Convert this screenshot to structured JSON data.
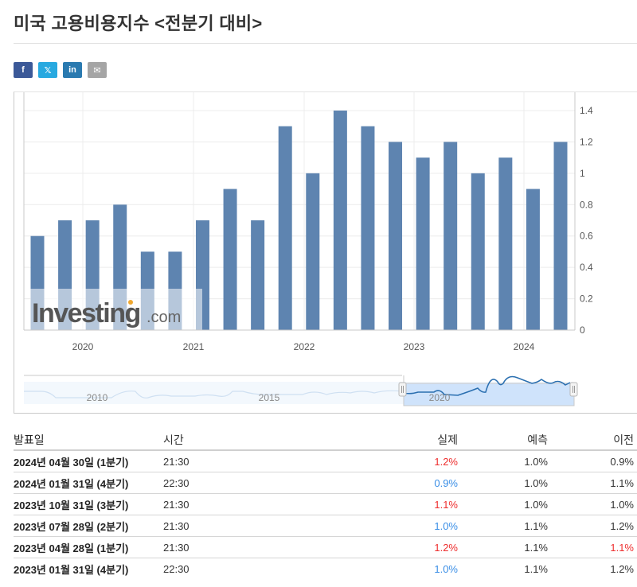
{
  "page": {
    "title": "미국 고용비용지수 <전분기 대비>"
  },
  "social": [
    {
      "name": "facebook",
      "glyph": "f",
      "color": "#3b5998"
    },
    {
      "name": "x-twitter",
      "glyph": "𝕏",
      "color": "#28a9e0"
    },
    {
      "name": "linkedin",
      "glyph": "in",
      "color": "#2a7ab0"
    },
    {
      "name": "email",
      "glyph": "✉",
      "color": "#a5a5a5"
    }
  ],
  "chart_data": {
    "type": "bar",
    "title": "미국 고용비용지수 <전분기 대비>",
    "xlabel": "",
    "ylabel": "",
    "ylim": [
      0,
      1.4
    ],
    "y_ticks": [
      "0",
      "0.2",
      "0.4",
      "0.6",
      "0.8",
      "1",
      "1.2",
      "1.4"
    ],
    "y_axis_position": "right",
    "x_tick_labels": [
      "2020",
      "2021",
      "2022",
      "2023",
      "2024"
    ],
    "grid": true,
    "legend": "none",
    "bar_color": "#5e84b0",
    "categories": [
      "2019Q3",
      "2019Q4",
      "2020Q1",
      "2020Q2",
      "2020Q3",
      "2020Q4",
      "2021Q1",
      "2021Q2",
      "2021Q3",
      "2021Q4",
      "2022Q1",
      "2022Q2",
      "2022Q3",
      "2022Q4",
      "2023Q1",
      "2023Q2",
      "2023Q3",
      "2023Q4",
      "2024Q1",
      "2024Q2"
    ],
    "values": [
      0.6,
      0.7,
      0.7,
      0.8,
      0.5,
      0.5,
      0.7,
      0.9,
      0.7,
      1.3,
      1.0,
      1.4,
      1.3,
      1.2,
      1.1,
      1.2,
      1.0,
      1.1,
      0.9,
      1.2
    ],
    "watermark": "Investing.com",
    "navigator": {
      "labels": [
        "2010",
        "2015",
        "2020"
      ],
      "selected_range": "2019–2024"
    }
  },
  "table": {
    "headers": {
      "date": "발표일",
      "time": "시간",
      "actual": "실제",
      "forecast": "예측",
      "previous": "이전"
    },
    "rows": [
      {
        "date": "2024년 04월 30일 (1분기)",
        "time": "21:30",
        "actual": "1.2%",
        "actual_dir": "up",
        "forecast": "1.0%",
        "previous": "0.9%",
        "previous_dir": ""
      },
      {
        "date": "2024년 01월 31일 (4분기)",
        "time": "22:30",
        "actual": "0.9%",
        "actual_dir": "down",
        "forecast": "1.0%",
        "previous": "1.1%",
        "previous_dir": ""
      },
      {
        "date": "2023년 10월 31일 (3분기)",
        "time": "21:30",
        "actual": "1.1%",
        "actual_dir": "up",
        "forecast": "1.0%",
        "previous": "1.0%",
        "previous_dir": ""
      },
      {
        "date": "2023년 07월 28일 (2분기)",
        "time": "21:30",
        "actual": "1.0%",
        "actual_dir": "down",
        "forecast": "1.1%",
        "previous": "1.2%",
        "previous_dir": ""
      },
      {
        "date": "2023년 04월 28일 (1분기)",
        "time": "21:30",
        "actual": "1.2%",
        "actual_dir": "up",
        "forecast": "1.1%",
        "previous": "1.1%",
        "previous_dir": "up"
      },
      {
        "date": "2023년 01월 31일 (4분기)",
        "time": "22:30",
        "actual": "1.0%",
        "actual_dir": "down",
        "forecast": "1.1%",
        "previous": "1.2%",
        "previous_dir": ""
      }
    ]
  }
}
